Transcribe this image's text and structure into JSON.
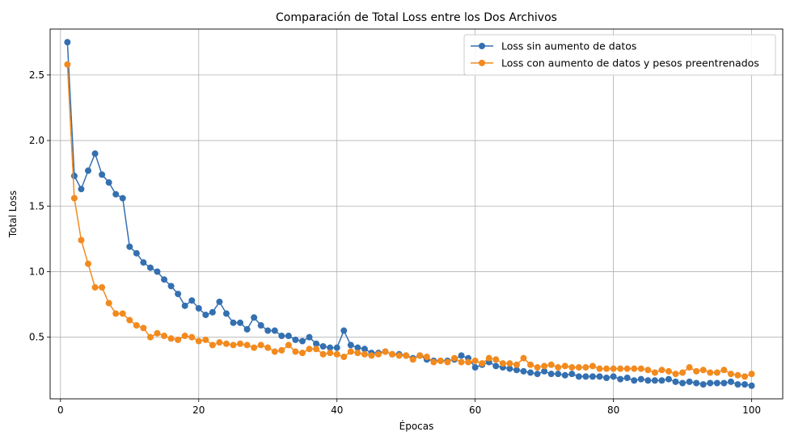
{
  "chart_data": {
    "type": "line",
    "title": "Comparación de Total Loss entre los Dos Archivos",
    "xlabel": "Épocas",
    "ylabel": "Total Loss",
    "xlim": [
      -1.5,
      104.5
    ],
    "ylim": [
      0.03,
      2.85
    ],
    "xticks": [
      0,
      20,
      40,
      60,
      80,
      100
    ],
    "yticks": [
      0.5,
      1.0,
      1.5,
      2.0,
      2.5
    ],
    "ytick_labels": [
      "0.5",
      "1.0",
      "1.5",
      "2.0",
      "2.5"
    ],
    "grid": true,
    "legend_position": "top-right",
    "x": [
      1,
      2,
      3,
      4,
      5,
      6,
      7,
      8,
      9,
      10,
      11,
      12,
      13,
      14,
      15,
      16,
      17,
      18,
      19,
      20,
      21,
      22,
      23,
      24,
      25,
      26,
      27,
      28,
      29,
      30,
      31,
      32,
      33,
      34,
      35,
      36,
      37,
      38,
      39,
      40,
      41,
      42,
      43,
      44,
      45,
      46,
      47,
      48,
      49,
      50,
      51,
      52,
      53,
      54,
      55,
      56,
      57,
      58,
      59,
      60,
      61,
      62,
      63,
      64,
      65,
      66,
      67,
      68,
      69,
      70,
      71,
      72,
      73,
      74,
      75,
      76,
      77,
      78,
      79,
      80,
      81,
      82,
      83,
      84,
      85,
      86,
      87,
      88,
      89,
      90,
      91,
      92,
      93,
      94,
      95,
      96,
      97,
      98,
      99,
      100
    ],
    "series": [
      {
        "name": "Loss sin aumento de datos",
        "color": "#3470b0",
        "values": [
          2.75,
          1.73,
          1.63,
          1.77,
          1.9,
          1.74,
          1.68,
          1.59,
          1.56,
          1.19,
          1.14,
          1.07,
          1.03,
          1.0,
          0.94,
          0.89,
          0.83,
          0.74,
          0.78,
          0.72,
          0.67,
          0.69,
          0.77,
          0.68,
          0.61,
          0.61,
          0.56,
          0.65,
          0.59,
          0.55,
          0.55,
          0.51,
          0.51,
          0.48,
          0.47,
          0.5,
          0.45,
          0.43,
          0.42,
          0.42,
          0.55,
          0.44,
          0.42,
          0.41,
          0.38,
          0.38,
          0.39,
          0.37,
          0.37,
          0.36,
          0.34,
          0.36,
          0.33,
          0.32,
          0.32,
          0.32,
          0.33,
          0.36,
          0.34,
          0.27,
          0.29,
          0.31,
          0.28,
          0.27,
          0.26,
          0.25,
          0.24,
          0.23,
          0.22,
          0.24,
          0.22,
          0.22,
          0.21,
          0.22,
          0.2,
          0.2,
          0.2,
          0.2,
          0.19,
          0.2,
          0.18,
          0.19,
          0.17,
          0.18,
          0.17,
          0.17,
          0.17,
          0.18,
          0.16,
          0.15,
          0.16,
          0.15,
          0.14,
          0.15,
          0.15,
          0.15,
          0.16,
          0.14,
          0.14,
          0.13
        ]
      },
      {
        "name": "Loss con aumento de datos y pesos preentrenados",
        "color": "#f28a1e",
        "values": [
          2.58,
          1.56,
          1.24,
          1.06,
          0.88,
          0.88,
          0.76,
          0.68,
          0.68,
          0.63,
          0.59,
          0.57,
          0.5,
          0.53,
          0.51,
          0.49,
          0.48,
          0.51,
          0.5,
          0.47,
          0.48,
          0.44,
          0.46,
          0.45,
          0.44,
          0.45,
          0.44,
          0.42,
          0.44,
          0.42,
          0.39,
          0.4,
          0.44,
          0.39,
          0.38,
          0.41,
          0.41,
          0.37,
          0.38,
          0.37,
          0.35,
          0.39,
          0.38,
          0.37,
          0.36,
          0.37,
          0.39,
          0.37,
          0.36,
          0.36,
          0.33,
          0.36,
          0.35,
          0.31,
          0.32,
          0.31,
          0.34,
          0.31,
          0.31,
          0.32,
          0.3,
          0.34,
          0.33,
          0.3,
          0.3,
          0.29,
          0.34,
          0.29,
          0.27,
          0.28,
          0.29,
          0.27,
          0.28,
          0.27,
          0.27,
          0.27,
          0.28,
          0.26,
          0.26,
          0.26,
          0.26,
          0.26,
          0.26,
          0.26,
          0.25,
          0.23,
          0.25,
          0.24,
          0.22,
          0.23,
          0.27,
          0.24,
          0.25,
          0.23,
          0.23,
          0.25,
          0.22,
          0.21,
          0.2,
          0.22
        ]
      }
    ]
  }
}
